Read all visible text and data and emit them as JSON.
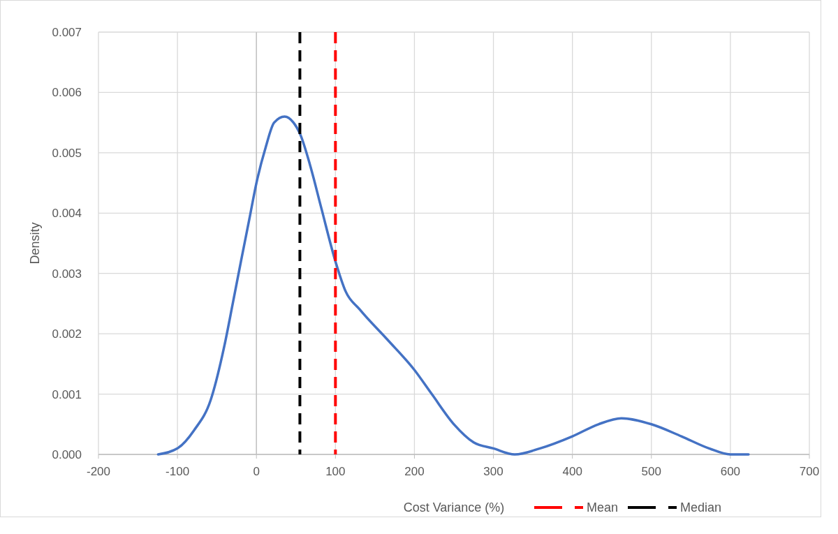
{
  "chart_data": {
    "type": "line",
    "xlabel": "Cost Variance (%)",
    "ylabel": "Density",
    "x": [
      -124.5,
      -100,
      -79,
      -58,
      -40.6,
      -30,
      -19.6,
      -9,
      0,
      11.9,
      22.4,
      35.7,
      46.9,
      55.6,
      67.8,
      81.8,
      100,
      113,
      131,
      166,
      200,
      222,
      250,
      275,
      300,
      327,
      359,
      400,
      433,
      462,
      500,
      538,
      573,
      600,
      623
    ],
    "series": [
      {
        "color": "#4472c4",
        "values": [
          0,
          0.0001,
          0.0004,
          0.0009,
          0.0018,
          0.0025,
          0.0032,
          0.0039,
          0.0045,
          0.0051,
          0.0055,
          0.0056,
          0.0055,
          0.0053,
          0.0048,
          0.0041,
          0.0032,
          0.0027,
          0.0024,
          0.0019,
          0.0014,
          0.001,
          0.0005,
          0.0002,
          0.0001,
          0,
          0.0001,
          0.0003,
          0.0005,
          0.0006,
          0.0005,
          0.0003,
          0.0001,
          0,
          0
        ]
      }
    ],
    "xlim": [
      -200,
      700
    ],
    "xticks": [
      -200,
      -100,
      0,
      100,
      200,
      300,
      400,
      500,
      600,
      700
    ],
    "ylim": [
      0,
      0.007
    ],
    "yticks": [
      {
        "value": 0,
        "label": "0.000"
      },
      {
        "value": 0.001,
        "label": "0.001"
      },
      {
        "value": 0.002,
        "label": "0.002"
      },
      {
        "value": 0.003,
        "label": "0.003"
      },
      {
        "value": 0.004,
        "label": "0.004"
      },
      {
        "value": 0.005,
        "label": "0.005"
      },
      {
        "value": 0.006,
        "label": "0.006"
      },
      {
        "value": 0.007,
        "label": "0.007"
      }
    ],
    "ref_lines": [
      {
        "axis": "x",
        "value": 100,
        "label": "Mean",
        "color": "#ff0000",
        "line_style": "dashed"
      },
      {
        "axis": "x",
        "value": 55,
        "label": "Median",
        "color": "#000000",
        "line_style": "dashed"
      }
    ],
    "grid": true,
    "legend": "bottom",
    "line_style": "solid"
  }
}
